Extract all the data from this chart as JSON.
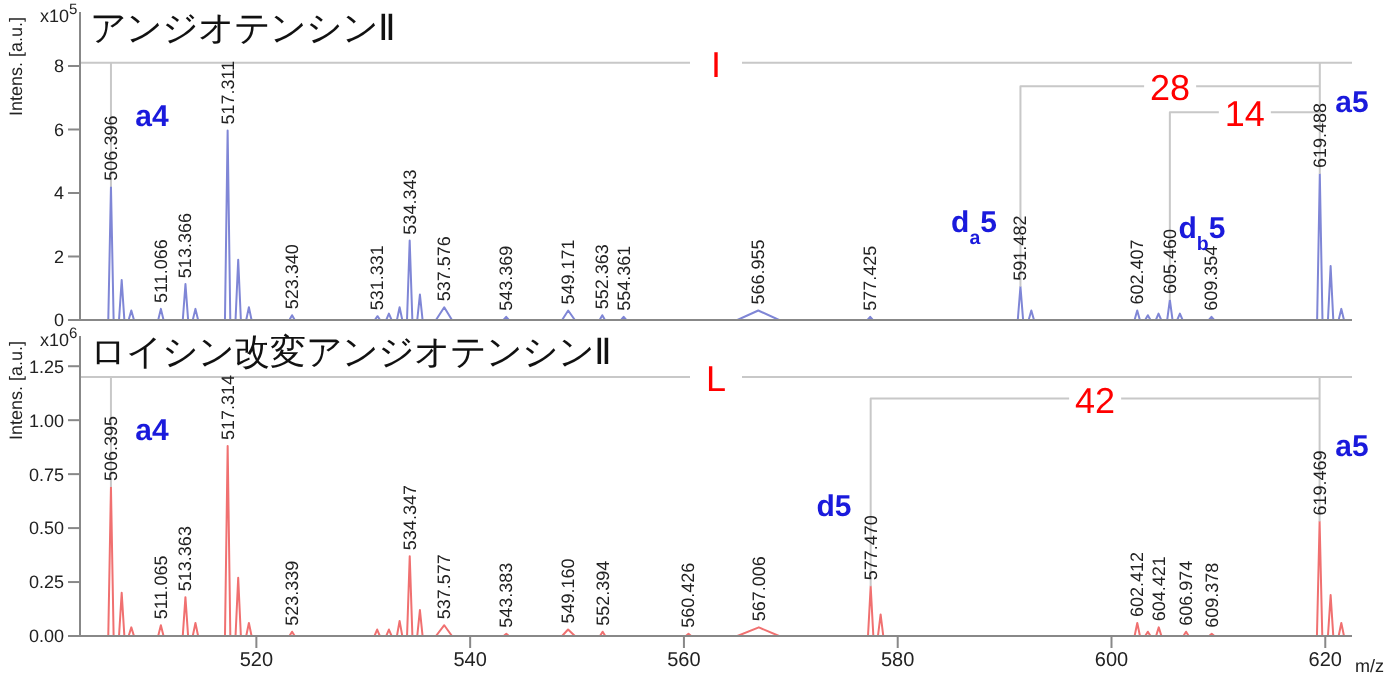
{
  "chart_data": [
    {
      "type": "line",
      "title": "アンジオテンシンⅡ",
      "subtitle": "x10$^{5}$",
      "ylabel": "Intens. [a.u.]",
      "xlim": [
        503.5,
        622.5
      ],
      "xticks": [
        520,
        540,
        560,
        580,
        600,
        620
      ],
      "ylim": [
        0,
        9.7
      ],
      "yticks": [
        0,
        2,
        4,
        6,
        8
      ],
      "tick_labels": "y",
      "series": [
        {
          "color": "#7f86d6",
          "x": [
            503.5,
            506.146,
            506.396,
            506.646,
            507.15,
            507.4,
            507.65,
            508.05,
            508.3,
            508.55,
            510.816,
            511.066,
            511.316,
            513.116,
            513.366,
            513.616,
            514.05,
            514.3,
            514.55,
            517.061,
            517.311,
            517.561,
            518.05,
            518.3,
            518.55,
            519.05,
            519.3,
            519.55,
            523.09,
            523.34,
            523.59,
            531.081,
            531.331,
            531.581,
            532.15,
            532.4,
            532.65,
            533.15,
            533.4,
            533.65,
            534.093,
            534.343,
            534.593,
            535.05,
            535.3,
            535.55,
            536.8,
            537.576,
            538.3,
            543.119,
            543.369,
            543.619,
            548.6,
            549.171,
            549.8,
            552.113,
            552.363,
            552.613,
            554.111,
            554.361,
            554.611,
            565.0,
            566.955,
            568.9,
            577.175,
            577.425,
            577.675,
            591.232,
            591.482,
            591.732,
            592.25,
            592.5,
            592.75,
            602.157,
            602.407,
            602.657,
            603.15,
            603.4,
            603.65,
            604.15,
            604.4,
            604.65,
            605.21,
            605.46,
            605.71,
            606.15,
            606.4,
            606.65,
            609.104,
            609.354,
            609.604,
            619.238,
            619.488,
            619.738,
            620.25,
            620.5,
            620.75,
            621.25,
            621.5,
            621.75,
            622.5
          ],
          "values": [
            0,
            0,
            4.2,
            0,
            0,
            1.26,
            0,
            0,
            0.3,
            0,
            0,
            0.35,
            0,
            0,
            1.13,
            0,
            0,
            0.35,
            0,
            0,
            5.97,
            0,
            0,
            1.9,
            0,
            0,
            0.4,
            0,
            0,
            0.15,
            0,
            0,
            0.12,
            0,
            0,
            0.2,
            0,
            0,
            0.4,
            0,
            0,
            2.5,
            0,
            0,
            0.8,
            0,
            0,
            0.4,
            0,
            0,
            0.1,
            0,
            0,
            0.3,
            0,
            0,
            0.15,
            0,
            0,
            0.1,
            0,
            0,
            0.3,
            0,
            0,
            0.1,
            0,
            0,
            1.05,
            0,
            0,
            0.3,
            0,
            0,
            0.3,
            0,
            0,
            0.15,
            0,
            0,
            0.2,
            0,
            0,
            0.63,
            0,
            0,
            0.2,
            0,
            0,
            0.1,
            0,
            0,
            4.6,
            0,
            0,
            1.7,
            0,
            0,
            0.35,
            0,
            0
          ]
        },
        {
          "name": "I",
          "color": "#c8c8c8",
          "x": [
            506.396,
            506.396,
            503.5,
            622.5,
            619.488,
            619.488
          ],
          "values": [
            4.2,
            8.1,
            8.1,
            8.1,
            8.1,
            4.6
          ]
        },
        {
          "name": "28",
          "color": "#c8c8c8",
          "x": [
            591.482,
            591.482,
            619.488
          ],
          "values": [
            1.05,
            7.36,
            7.36
          ]
        },
        {
          "name": "14",
          "color": "#c8c8c8",
          "x": [
            605.46,
            605.46,
            619.488
          ],
          "values": [
            0.63,
            6.54,
            6.54
          ]
        }
      ],
      "annotations": [
        "a4",
        "a5",
        "d$_{a}$5",
        "d$_{b}$5",
        {
          "text": "506.396",
          "x": 506.396,
          "y": 4.2
        },
        {
          "text": "511.066",
          "x": 511.066,
          "y": 0.35
        },
        {
          "text": "513.366",
          "x": 513.366,
          "y": 1.13
        },
        {
          "text": "517.311",
          "x": 517.311,
          "y": 5.97
        },
        {
          "text": "523.340",
          "x": 523.34,
          "y": 0.15
        },
        {
          "text": "531.331",
          "x": 531.331,
          "y": 0.12
        },
        {
          "text": "534.343",
          "x": 534.343,
          "y": 2.5
        },
        {
          "text": "537.576",
          "x": 537.576,
          "y": 0.4
        },
        {
          "text": "543.369",
          "x": 543.369,
          "y": 0.1
        },
        {
          "text": "549.171",
          "x": 549.171,
          "y": 0.3
        },
        {
          "text": "552.363",
          "x": 552.363,
          "y": 0.15
        },
        {
          "text": "554.361",
          "x": 554.361,
          "y": 0.1
        },
        {
          "text": "566.955",
          "x": 566.955,
          "y": 0.3
        },
        {
          "text": "577.425",
          "x": 577.425,
          "y": 0.1
        },
        {
          "text": "591.482",
          "x": 591.482,
          "y": 1.05
        },
        {
          "text": "602.407",
          "x": 602.407,
          "y": 0.3
        },
        {
          "text": "605.460",
          "x": 605.46,
          "y": 0.63
        },
        {
          "text": "609.354",
          "x": 609.354,
          "y": 0.1
        },
        {
          "text": "619.488",
          "x": 619.488,
          "y": 4.6
        }
      ]
    },
    {
      "type": "line",
      "title": "ロイシン改変アンジオテンシンⅡ",
      "subtitle": "x10$^{6}$",
      "ylabel": "Intens. [a.u.]",
      "xlabel": "m/z",
      "xlim": [
        503.5,
        622.5
      ],
      "xticks": [
        520,
        540,
        560,
        580,
        600,
        620
      ],
      "ylim": [
        0,
        1.39
      ],
      "yticks": [
        {
          "value": 0,
          "label": "0.00"
        },
        {
          "value": 0.25,
          "label": "0.25"
        },
        {
          "value": 0.5,
          "label": "0.50"
        },
        {
          "value": 0.75,
          "label": "0.75"
        },
        {
          "value": 1,
          "label": "1.00"
        },
        {
          "value": 1.25,
          "label": "1.25"
        }
      ],
      "series": [
        {
          "color": "#f07070",
          "x": [
            503.5,
            506.145,
            506.395,
            506.645,
            507.15,
            507.4,
            507.65,
            508.05,
            508.3,
            508.55,
            510.815,
            511.065,
            511.315,
            513.113,
            513.363,
            513.613,
            514.05,
            514.3,
            514.55,
            517.064,
            517.314,
            517.564,
            518.05,
            518.3,
            518.55,
            519.05,
            519.3,
            519.55,
            523.089,
            523.339,
            523.589,
            531.05,
            531.3,
            531.55,
            532.15,
            532.4,
            532.65,
            533.15,
            533.4,
            533.65,
            534.097,
            534.347,
            534.597,
            535.05,
            535.3,
            535.55,
            536.8,
            537.577,
            538.3,
            543.133,
            543.383,
            543.633,
            548.6,
            549.16,
            549.8,
            552.144,
            552.394,
            552.644,
            560.176,
            560.426,
            560.676,
            565.0,
            567.006,
            568.9,
            577.22,
            577.47,
            577.72,
            578.15,
            578.4,
            578.65,
            602.162,
            602.412,
            602.662,
            603.15,
            603.4,
            603.65,
            604.171,
            604.421,
            604.671,
            606.724,
            606.974,
            607.224,
            609.128,
            609.378,
            609.628,
            619.219,
            619.469,
            619.719,
            620.25,
            620.5,
            620.75,
            621.25,
            621.5,
            621.75,
            622.5
          ],
          "values": [
            0,
            0,
            0.69,
            0,
            0,
            0.2,
            0,
            0,
            0.04,
            0,
            0,
            0.05,
            0,
            0,
            0.18,
            0,
            0,
            0.06,
            0,
            0,
            0.88,
            0,
            0,
            0.27,
            0,
            0,
            0.06,
            0,
            0,
            0.02,
            0,
            0,
            0.03,
            0,
            0,
            0.03,
            0,
            0,
            0.07,
            0,
            0,
            0.37,
            0,
            0,
            0.12,
            0,
            0,
            0.05,
            0,
            0,
            0.01,
            0,
            0,
            0.03,
            0,
            0,
            0.02,
            0,
            0,
            0.01,
            0,
            0,
            0.04,
            0,
            0,
            0.23,
            0,
            0,
            0.1,
            0,
            0,
            0.06,
            0,
            0,
            0.02,
            0,
            0,
            0.04,
            0,
            0,
            0.02,
            0,
            0,
            0.01,
            0,
            0,
            0.53,
            0,
            0,
            0.19,
            0,
            0,
            0.06,
            0,
            0
          ]
        },
        {
          "name": "L",
          "color": "#c8c8c8",
          "x": [
            506.395,
            506.395,
            503.5,
            622.5,
            619.469,
            619.469
          ],
          "values": [
            0.69,
            1.2,
            1.2,
            1.2,
            1.2,
            0.53
          ]
        },
        {
          "name": "42",
          "color": "#c8c8c8",
          "x": [
            577.47,
            577.47,
            619.469
          ],
          "values": [
            0.23,
            1.1,
            1.1
          ]
        }
      ],
      "annotations": [
        "a4",
        "a5",
        "d5",
        {
          "text": "506.395",
          "x": 506.395,
          "y": 0.69
        },
        {
          "text": "511.065",
          "x": 511.065,
          "y": 0.05
        },
        {
          "text": "513.363",
          "x": 513.363,
          "y": 0.18
        },
        {
          "text": "517.314",
          "x": 517.314,
          "y": 0.88
        },
        {
          "text": "523.339",
          "x": 523.339,
          "y": 0.02
        },
        {
          "text": "534.347",
          "x": 534.347,
          "y": 0.37
        },
        {
          "text": "537.577",
          "x": 537.577,
          "y": 0.05
        },
        {
          "text": "543.383",
          "x": 543.383,
          "y": 0.01
        },
        {
          "text": "549.160",
          "x": 549.16,
          "y": 0.03
        },
        {
          "text": "552.394",
          "x": 552.394,
          "y": 0.02
        },
        {
          "text": "560.426",
          "x": 560.426,
          "y": 0.01
        },
        {
          "text": "567.006",
          "x": 567.006,
          "y": 0.04
        },
        {
          "text": "577.470",
          "x": 577.47,
          "y": 0.23
        },
        {
          "text": "602.412",
          "x": 602.412,
          "y": 0.06
        },
        {
          "text": "604.421",
          "x": 604.421,
          "y": 0.04
        },
        {
          "text": "606.974",
          "x": 606.974,
          "y": 0.02
        },
        {
          "text": "609.378",
          "x": 609.378,
          "y": 0.01
        },
        {
          "text": "619.469",
          "x": 619.469,
          "y": 0.53
        }
      ]
    }
  ]
}
